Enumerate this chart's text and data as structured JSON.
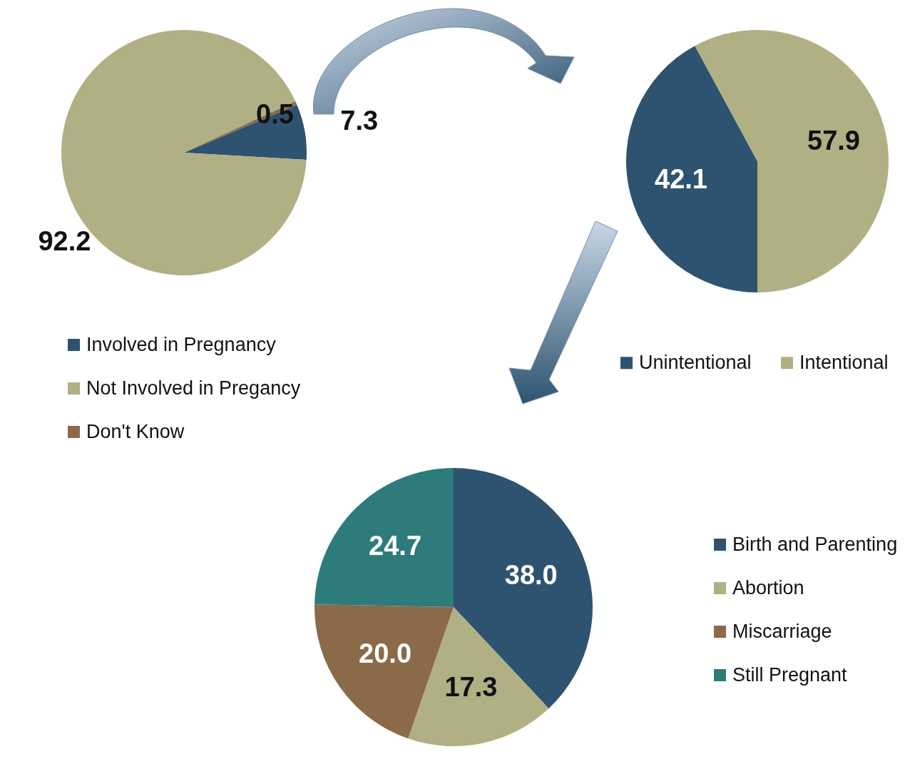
{
  "chart_data": [
    {
      "type": "pie",
      "categories": [
        "Involved in Pregnancy",
        "Not Involved in Pregancy",
        "Don't Know"
      ],
      "values": [
        7.3,
        92.2,
        0.5
      ],
      "value_labels": [
        "7.3",
        "92.2",
        "0.5"
      ],
      "colors": [
        "#2e5370",
        "#b0b084",
        "#8b6a4a"
      ],
      "legend": "bottom"
    },
    {
      "type": "pie",
      "categories": [
        "Unintentional",
        "Intentional"
      ],
      "values": [
        42.1,
        57.9
      ],
      "value_labels": [
        "42.1",
        "57.9"
      ],
      "colors": [
        "#2e5370",
        "#b0b084"
      ],
      "legend": "bottom"
    },
    {
      "type": "pie",
      "categories": [
        "Birth and Parenting",
        "Abortion",
        "Miscarriage",
        "Still Pregnant"
      ],
      "values": [
        38.0,
        17.3,
        20.0,
        24.7
      ],
      "value_labels": [
        "38.0",
        "17.3",
        "20.0",
        "24.7"
      ],
      "colors": [
        "#2e5370",
        "#b0b084",
        "#8b6a4a",
        "#2e7b7b"
      ],
      "legend": "right"
    }
  ]
}
